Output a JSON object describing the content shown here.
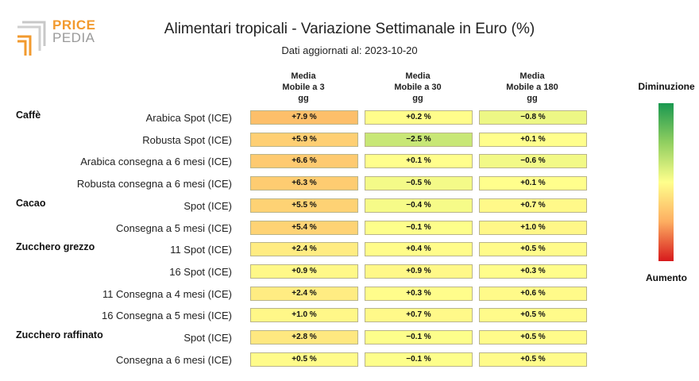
{
  "logo": {
    "word1": "PRICE",
    "word2": "PEDIA"
  },
  "title": "Alimentari tropicali - Variazione Settimanale in Euro (%)",
  "subtitle": "Dati aggiornati al: 2023-10-20",
  "legend": {
    "top": "Diminuzione",
    "bottom": "Aumento"
  },
  "colors": {
    "decrease": "#1a9850",
    "neutral": "#ffff8c",
    "increase": "#d7191c"
  },
  "chart_data": {
    "type": "heatmap",
    "title": "Alimentari tropicali - Variazione Settimanale in Euro (%)",
    "columns": [
      "Media\nMobile a 3\ngg",
      "Media\nMobile a 30\ngg",
      "Media\nMobile a 180\ngg"
    ],
    "groups": [
      {
        "name": "Caffè",
        "rows": [
          {
            "label": "Arabica Spot (ICE)",
            "values": [
              7.9,
              0.2,
              -0.8
            ]
          },
          {
            "label": "Robusta Spot (ICE)",
            "values": [
              5.9,
              -2.5,
              0.1
            ]
          },
          {
            "label": "Arabica consegna a 6 mesi (ICE)",
            "values": [
              6.6,
              0.1,
              -0.6
            ]
          },
          {
            "label": "Robusta consegna a 6 mesi (ICE)",
            "values": [
              6.3,
              -0.5,
              0.1
            ]
          }
        ]
      },
      {
        "name": "Cacao",
        "rows": [
          {
            "label": "Spot (ICE)",
            "values": [
              5.5,
              -0.4,
              0.7
            ]
          },
          {
            "label": "Consegna a 5 mesi (ICE)",
            "values": [
              5.4,
              -0.1,
              1.0
            ]
          }
        ]
      },
      {
        "name": "Zucchero grezzo",
        "rows": [
          {
            "label": "11 Spot (ICE)",
            "values": [
              2.4,
              0.4,
              0.5
            ]
          },
          {
            "label": "16 Spot (ICE)",
            "values": [
              0.9,
              0.9,
              0.3
            ]
          },
          {
            "label": "11 Consegna a 4 mesi (ICE)",
            "values": [
              2.4,
              0.3,
              0.6
            ]
          },
          {
            "label": "16 Consegna a 5 mesi (ICE)",
            "values": [
              1.0,
              0.7,
              0.5
            ]
          }
        ]
      },
      {
        "name": "Zucchero raffinato",
        "rows": [
          {
            "label": "Spot (ICE)",
            "values": [
              2.8,
              -0.1,
              0.5
            ]
          },
          {
            "label": "Consegna a 6 mesi (ICE)",
            "values": [
              0.5,
              -0.1,
              0.5
            ]
          }
        ]
      }
    ]
  }
}
